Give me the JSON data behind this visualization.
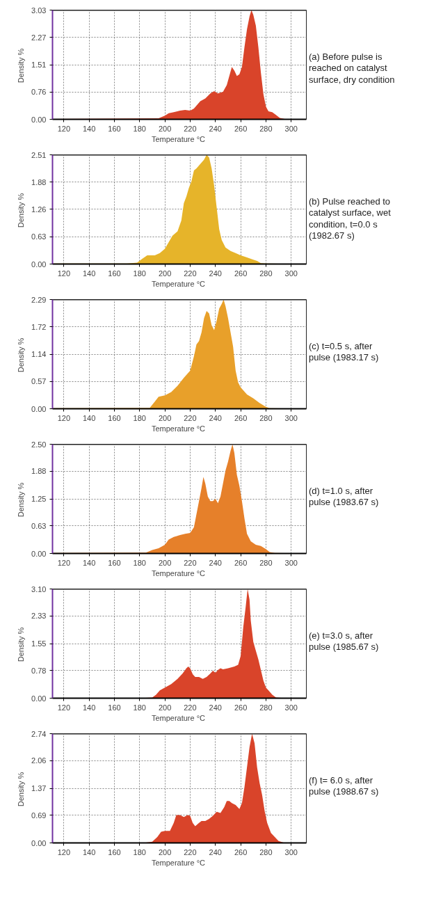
{
  "chart_data": [
    {
      "type": "area",
      "xlabel": "Temperature  °C",
      "ylabel": "Density  %",
      "annotations": [
        "(a) Before pulse is\nreached on catalyst\nsurface, dry condition"
      ],
      "x": [
        111,
        195,
        200,
        203,
        207,
        212,
        216,
        220,
        223,
        228,
        232,
        236,
        239,
        242,
        246,
        249,
        251,
        253,
        255,
        257,
        259,
        261,
        263,
        265,
        267,
        268.5,
        270,
        272,
        274,
        276,
        278,
        280,
        282,
        285,
        288,
        291,
        295,
        310
      ],
      "series": [
        {
          "color": "#d9442a",
          "values": [
            0.01,
            0.03,
            0.1,
            0.17,
            0.2,
            0.24,
            0.26,
            0.24,
            0.3,
            0.5,
            0.58,
            0.72,
            0.78,
            0.72,
            0.76,
            0.95,
            1.2,
            1.45,
            1.35,
            1.2,
            1.25,
            1.45,
            2.0,
            2.5,
            2.85,
            3.03,
            2.9,
            2.6,
            2.0,
            1.3,
            0.7,
            0.35,
            0.22,
            0.2,
            0.12,
            0.04,
            0.01,
            0.0
          ]
        }
      ],
      "xlim": [
        111,
        312
      ],
      "ylim": [
        0,
        3.03
      ],
      "xticks": [
        120,
        140,
        160,
        180,
        200,
        220,
        240,
        260,
        280,
        300
      ],
      "yticks": [
        {
          "value": 0,
          "label": "0.00"
        },
        0.76,
        1.51,
        2.27,
        3.03
      ],
      "grid": true
    },
    {
      "type": "area",
      "xlabel": "Temperature  °C",
      "ylabel": "Density  %",
      "annotations": [
        "(b) Pulse reached to\ncatalyst surface, wet\ncondition, t=0.0 s\n(1982.67 s)"
      ],
      "x": [
        111,
        170,
        178,
        182,
        186,
        192,
        196,
        200,
        204,
        206,
        210,
        213,
        215,
        217,
        219,
        221,
        223,
        225,
        228,
        231,
        233,
        235,
        237,
        239,
        241,
        243,
        245,
        248,
        252,
        256,
        260,
        265,
        270,
        273,
        276,
        280,
        310
      ],
      "series": [
        {
          "color": "#e6b42a",
          "values": [
            0.01,
            0.01,
            0.03,
            0.12,
            0.2,
            0.2,
            0.25,
            0.35,
            0.55,
            0.65,
            0.75,
            1.0,
            1.4,
            1.55,
            1.75,
            1.9,
            2.15,
            2.2,
            2.3,
            2.4,
            2.51,
            2.45,
            2.2,
            1.8,
            1.3,
            0.8,
            0.55,
            0.38,
            0.3,
            0.25,
            0.2,
            0.15,
            0.1,
            0.07,
            0.02,
            0.01,
            0.0
          ]
        }
      ],
      "xlim": [
        111,
        312
      ],
      "ylim": [
        0,
        2.51
      ],
      "xticks": [
        120,
        140,
        160,
        180,
        200,
        220,
        240,
        260,
        280,
        300
      ],
      "yticks": [
        {
          "value": 0,
          "label": "0.00"
        },
        0.63,
        1.26,
        1.88,
        2.51
      ],
      "grid": true
    },
    {
      "type": "area",
      "xlabel": "Temperature  °C",
      "ylabel": "Density  %",
      "annotations": [
        "(c) t=0.5 s, after\npulse (1983.17 s)"
      ],
      "x": [
        111,
        188,
        192,
        195,
        200,
        205,
        210,
        215,
        220,
        223,
        225,
        227,
        229,
        231,
        233,
        235,
        237,
        239,
        241,
        243,
        245,
        246.5,
        248,
        250,
        252,
        254,
        256,
        258,
        260,
        265,
        270,
        275,
        280,
        283,
        310
      ],
      "series": [
        {
          "color": "#e8a02a",
          "values": [
            0.01,
            0.02,
            0.15,
            0.25,
            0.28,
            0.35,
            0.48,
            0.65,
            0.8,
            1.1,
            1.35,
            1.42,
            1.6,
            1.9,
            2.05,
            2.0,
            1.75,
            1.65,
            1.85,
            2.1,
            2.2,
            2.29,
            2.15,
            1.9,
            1.6,
            1.3,
            0.8,
            0.55,
            0.45,
            0.3,
            0.22,
            0.12,
            0.04,
            0.01,
            0.0
          ]
        }
      ],
      "xlim": [
        111,
        312
      ],
      "ylim": [
        0,
        2.29
      ],
      "xticks": [
        120,
        140,
        160,
        180,
        200,
        220,
        240,
        260,
        280,
        300
      ],
      "yticks": [
        {
          "value": 0,
          "label": "0.00"
        },
        0.57,
        1.14,
        1.72,
        2.29
      ],
      "grid": true
    },
    {
      "type": "area",
      "xlabel": "Temperature  °C",
      "ylabel": "Density  %",
      "annotations": [
        "(d) t=1.0 s, after\npulse (1983.67 s)"
      ],
      "x": [
        111,
        185,
        190,
        195,
        200,
        203,
        207,
        212,
        216,
        220,
        223,
        225,
        227,
        229,
        230.5,
        232,
        234,
        236,
        238,
        240,
        242,
        244,
        246,
        248,
        250,
        252,
        253.5,
        255,
        257,
        259,
        261,
        263,
        265,
        268,
        272,
        276,
        280,
        283,
        287,
        310
      ],
      "series": [
        {
          "color": "#e6802a",
          "values": [
            0.01,
            0.02,
            0.08,
            0.12,
            0.2,
            0.32,
            0.38,
            0.42,
            0.45,
            0.47,
            0.6,
            0.9,
            1.2,
            1.5,
            1.75,
            1.6,
            1.3,
            1.2,
            1.2,
            1.25,
            1.15,
            1.3,
            1.6,
            1.9,
            2.1,
            2.35,
            2.5,
            2.3,
            1.8,
            1.55,
            1.2,
            0.8,
            0.45,
            0.28,
            0.2,
            0.17,
            0.1,
            0.03,
            0.01,
            0.0
          ]
        }
      ],
      "xlim": [
        111,
        312
      ],
      "ylim": [
        0,
        2.5
      ],
      "xticks": [
        120,
        140,
        160,
        180,
        200,
        220,
        240,
        260,
        280,
        300
      ],
      "yticks": [
        {
          "value": 0,
          "label": "0.00"
        },
        0.63,
        1.25,
        1.88,
        {
          "value": 2.5,
          "label": "2.50"
        }
      ],
      "grid": true
    },
    {
      "type": "area",
      "xlabel": "Temperature  °C",
      "ylabel": "Density  %",
      "annotations": [
        "(e) t=3.0 s, after\npulse (1985.67 s)"
      ],
      "x": [
        111,
        185,
        190,
        193,
        196,
        200,
        205,
        210,
        214,
        217,
        218.5,
        220,
        222,
        224,
        227,
        230,
        233,
        236,
        238,
        240,
        242,
        244,
        246,
        250,
        255,
        258,
        260,
        262,
        264,
        265.5,
        267,
        268,
        270,
        272,
        274,
        276,
        278,
        280,
        282,
        285,
        288,
        292,
        310
      ],
      "series": [
        {
          "color": "#d9442a",
          "values": [
            0.01,
            0.01,
            0.02,
            0.1,
            0.22,
            0.3,
            0.4,
            0.55,
            0.7,
            0.85,
            0.9,
            0.85,
            0.68,
            0.6,
            0.6,
            0.55,
            0.6,
            0.7,
            0.78,
            0.72,
            0.8,
            0.85,
            0.82,
            0.85,
            0.9,
            0.95,
            1.2,
            2.0,
            2.6,
            3.1,
            2.8,
            2.2,
            1.6,
            1.35,
            1.1,
            0.8,
            0.5,
            0.3,
            0.22,
            0.1,
            0.02,
            0.01,
            0.0
          ]
        }
      ],
      "xlim": [
        111,
        312
      ],
      "ylim": [
        0,
        3.1
      ],
      "xticks": [
        120,
        140,
        160,
        180,
        200,
        220,
        240,
        260,
        280,
        300
      ],
      "yticks": [
        {
          "value": 0,
          "label": "0.00"
        },
        0.78,
        1.55,
        2.33,
        {
          "value": 3.1,
          "label": "3.10"
        }
      ],
      "grid": true
    },
    {
      "type": "area",
      "xlabel": "Temperature  °C",
      "ylabel": "Density  %",
      "annotations": [
        "(f) t= 6.0 s, after\npulse (1988.67 s)"
      ],
      "x": [
        111,
        185,
        190,
        194,
        197,
        200,
        204,
        207,
        209,
        212,
        215,
        218,
        220,
        222,
        224,
        227,
        229,
        232,
        235,
        238,
        241,
        244,
        247,
        249,
        251,
        253,
        256,
        259,
        261,
        263,
        265,
        267,
        269,
        271,
        273,
        275,
        277,
        279,
        281,
        284,
        287,
        290,
        294,
        310
      ],
      "series": [
        {
          "color": "#d9442a",
          "values": [
            0.01,
            0.01,
            0.03,
            0.15,
            0.28,
            0.3,
            0.3,
            0.5,
            0.7,
            0.7,
            0.65,
            0.7,
            0.68,
            0.5,
            0.42,
            0.5,
            0.55,
            0.55,
            0.6,
            0.68,
            0.78,
            0.75,
            0.9,
            1.05,
            1.05,
            1.0,
            0.95,
            0.85,
            1.0,
            1.4,
            1.9,
            2.4,
            2.74,
            2.5,
            1.9,
            1.5,
            1.2,
            0.8,
            0.5,
            0.25,
            0.15,
            0.05,
            0.01,
            0.0
          ]
        }
      ],
      "xlim": [
        111,
        312
      ],
      "ylim": [
        0,
        2.74
      ],
      "xticks": [
        120,
        140,
        160,
        180,
        200,
        220,
        240,
        260,
        280,
        300
      ],
      "yticks": [
        {
          "value": 0,
          "label": "0.00"
        },
        0.69,
        1.37,
        2.06,
        2.74
      ],
      "grid": true
    }
  ]
}
